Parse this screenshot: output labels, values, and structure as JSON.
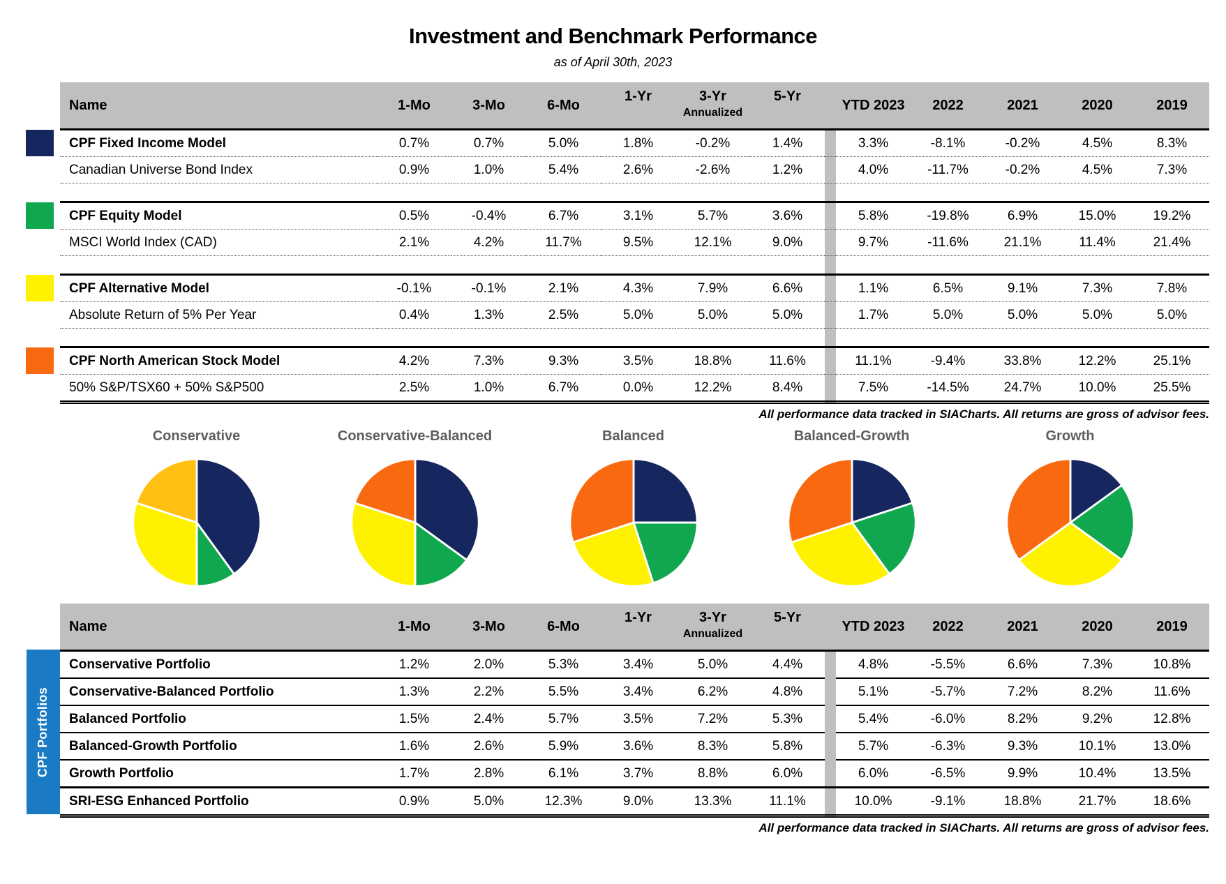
{
  "title": "Investment and Benchmark Performance",
  "subtitle": "as of April 30th, 2023",
  "footnote": "All performance data tracked in SIACharts. All returns are gross of advisor fees.",
  "colors": {
    "navy": "#16265E",
    "green": "#10A74F",
    "yellow": "#FFF200",
    "orange": "#F96A10",
    "amber": "#FFC013",
    "header_gray": "#BFBFBF",
    "sidebar_blue": "#1B7AC4"
  },
  "header": {
    "name_label": "Name",
    "mo_cols": [
      "1-Mo",
      "3-Mo",
      "6-Mo"
    ],
    "yr_cols": [
      "1-Yr",
      "3-Yr",
      "5-Yr"
    ],
    "annualized_label": "Annualized",
    "year_cols": [
      "YTD 2023",
      "2022",
      "2021",
      "2020",
      "2019"
    ]
  },
  "models_table": {
    "rows": [
      {
        "name": "CPF Fixed Income Model",
        "values": [
          "0.7%",
          "0.7%",
          "5.0%",
          "1.8%",
          "-0.2%",
          "1.4%",
          "3.3%",
          "-8.1%",
          "-0.2%",
          "4.5%",
          "8.3%"
        ]
      },
      {
        "name": "Canadian Universe Bond Index",
        "values": [
          "0.9%",
          "1.0%",
          "5.4%",
          "2.6%",
          "-2.6%",
          "1.2%",
          "4.0%",
          "-11.7%",
          "-0.2%",
          "4.5%",
          "7.3%"
        ]
      },
      {
        "name": "CPF Equity Model",
        "values": [
          "0.5%",
          "-0.4%",
          "6.7%",
          "3.1%",
          "5.7%",
          "3.6%",
          "5.8%",
          "-19.8%",
          "6.9%",
          "15.0%",
          "19.2%"
        ]
      },
      {
        "name": "MSCI World Index (CAD)",
        "values": [
          "2.1%",
          "4.2%",
          "11.7%",
          "9.5%",
          "12.1%",
          "9.0%",
          "9.7%",
          "-11.6%",
          "21.1%",
          "11.4%",
          "21.4%"
        ]
      },
      {
        "name": "CPF Alternative Model",
        "values": [
          "-0.1%",
          "-0.1%",
          "2.1%",
          "4.3%",
          "7.9%",
          "6.6%",
          "1.1%",
          "6.5%",
          "9.1%",
          "7.3%",
          "7.8%"
        ]
      },
      {
        "name": "Absolute Return of 5% Per Year",
        "values": [
          "0.4%",
          "1.3%",
          "2.5%",
          "5.0%",
          "5.0%",
          "5.0%",
          "1.7%",
          "5.0%",
          "5.0%",
          "5.0%",
          "5.0%"
        ]
      },
      {
        "name": "CPF North American Stock Model",
        "values": [
          "4.2%",
          "7.3%",
          "9.3%",
          "3.5%",
          "18.8%",
          "11.6%",
          "11.1%",
          "-9.4%",
          "33.8%",
          "12.2%",
          "25.1%"
        ]
      },
      {
        "name": "50% S&P/TSX60 + 50% S&P500",
        "values": [
          "2.5%",
          "1.0%",
          "6.7%",
          "0.0%",
          "12.2%",
          "8.4%",
          "7.5%",
          "-14.5%",
          "24.7%",
          "10.0%",
          "25.5%"
        ]
      }
    ]
  },
  "portfolios_table": {
    "sidebar_label": "CPF Portfolios",
    "rows": [
      {
        "name": "Conservative Portfolio",
        "values": [
          "1.2%",
          "2.0%",
          "5.3%",
          "3.4%",
          "5.0%",
          "4.4%",
          "4.8%",
          "-5.5%",
          "6.6%",
          "7.3%",
          "10.8%"
        ]
      },
      {
        "name": "Conservative-Balanced Portfolio",
        "values": [
          "1.3%",
          "2.2%",
          "5.5%",
          "3.4%",
          "6.2%",
          "4.8%",
          "5.1%",
          "-5.7%",
          "7.2%",
          "8.2%",
          "11.6%"
        ]
      },
      {
        "name": "Balanced Portfolio",
        "values": [
          "1.5%",
          "2.4%",
          "5.7%",
          "3.5%",
          "7.2%",
          "5.3%",
          "5.4%",
          "-6.0%",
          "8.2%",
          "9.2%",
          "12.8%"
        ]
      },
      {
        "name": "Balanced-Growth Portfolio",
        "values": [
          "1.6%",
          "2.6%",
          "5.9%",
          "3.6%",
          "8.3%",
          "5.8%",
          "5.7%",
          "-6.3%",
          "9.3%",
          "10.1%",
          "13.0%"
        ]
      },
      {
        "name": "Growth Portfolio",
        "values": [
          "1.7%",
          "2.8%",
          "6.1%",
          "3.7%",
          "8.8%",
          "6.0%",
          "6.0%",
          "-6.5%",
          "9.9%",
          "10.4%",
          "13.5%"
        ]
      },
      {
        "name": "SRI-ESG Enhanced Portfolio",
        "values": [
          "0.9%",
          "5.0%",
          "12.3%",
          "9.0%",
          "13.3%",
          "11.1%",
          "10.0%",
          "-9.1%",
          "18.8%",
          "21.7%",
          "18.6%"
        ]
      }
    ]
  },
  "chart_data": [
    {
      "type": "pie",
      "title": "Conservative",
      "unit": "%",
      "slices": [
        {
          "color": "#16265E",
          "pct": 40
        },
        {
          "color": "#10A74F",
          "pct": 10
        },
        {
          "color": "#FFF200",
          "pct": 30
        },
        {
          "color": "#FFC013",
          "pct": 20
        }
      ]
    },
    {
      "type": "pie",
      "title": "Conservative-Balanced",
      "unit": "%",
      "slices": [
        {
          "color": "#16265E",
          "pct": 35
        },
        {
          "color": "#10A74F",
          "pct": 15
        },
        {
          "color": "#FFF200",
          "pct": 30
        },
        {
          "color": "#F96A10",
          "pct": 20
        }
      ]
    },
    {
      "type": "pie",
      "title": "Balanced",
      "unit": "%",
      "slices": [
        {
          "color": "#16265E",
          "pct": 25
        },
        {
          "color": "#10A74F",
          "pct": 20
        },
        {
          "color": "#FFF200",
          "pct": 25
        },
        {
          "color": "#F96A10",
          "pct": 30
        }
      ]
    },
    {
      "type": "pie",
      "title": "Balanced-Growth",
      "unit": "%",
      "slices": [
        {
          "color": "#16265E",
          "pct": 20
        },
        {
          "color": "#10A74F",
          "pct": 20
        },
        {
          "color": "#FFF200",
          "pct": 30
        },
        {
          "color": "#F96A10",
          "pct": 30
        }
      ]
    },
    {
      "type": "pie",
      "title": "Growth",
      "unit": "%",
      "slices": [
        {
          "color": "#16265E",
          "pct": 15
        },
        {
          "color": "#10A74F",
          "pct": 20
        },
        {
          "color": "#FFF200",
          "pct": 30
        },
        {
          "color": "#F96A10",
          "pct": 35
        }
      ]
    }
  ]
}
